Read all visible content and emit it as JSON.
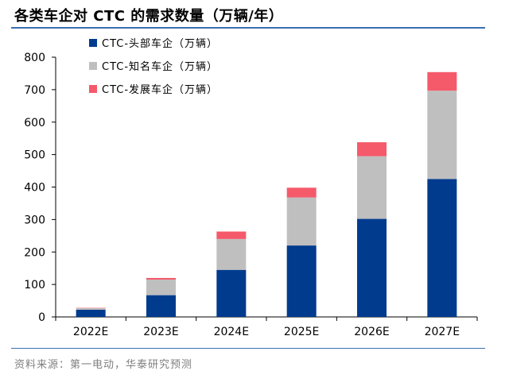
{
  "header": {
    "title": "各类车企对 CTC 的需求数量（万辆/年）"
  },
  "footer": {
    "source": "资料来源：第一电动，华泰研究预测"
  },
  "chart_data": {
    "type": "bar",
    "stacked": true,
    "title": "各类车企对 CTC 的需求数量（万辆/年）",
    "xlabel": "",
    "ylabel": "",
    "categories": [
      "2022E",
      "2023E",
      "2024E",
      "2025E",
      "2026E",
      "2027E"
    ],
    "ylim": [
      0,
      800
    ],
    "yticks": [
      0,
      100,
      200,
      300,
      400,
      500,
      600,
      700,
      800
    ],
    "grid": false,
    "legend_position": "top-left",
    "series": [
      {
        "name": "CTC-头部车企（万辆）",
        "color": "#003B8E",
        "values": [
          22,
          67,
          145,
          220,
          302,
          425
        ]
      },
      {
        "name": "CTC-知名车企（万辆）",
        "color": "#BFBFBF",
        "values": [
          5,
          48,
          95,
          148,
          193,
          272
        ]
      },
      {
        "name": "CTC-发展车企（万辆）",
        "color": "#F55A6A",
        "values": [
          1,
          5,
          23,
          30,
          43,
          57
        ]
      }
    ]
  }
}
